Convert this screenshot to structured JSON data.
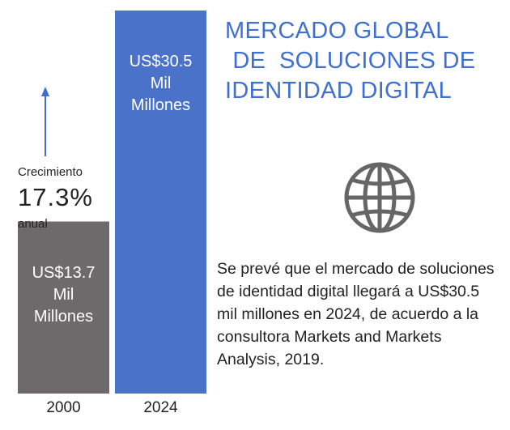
{
  "colors": {
    "bar_2000": "#6e6a6b",
    "bar_2024": "#4a72c8",
    "title": "#3f6fd1",
    "arrow": "#3f6fd1",
    "globe": "#666666"
  },
  "title": {
    "line1": "MERCADO GLOBAL",
    "line2": " DE  SOLUCIONES DE",
    "line3": "IDENTIDAD DIGITAL"
  },
  "growth": {
    "label": "Crecimiento",
    "value": "17.3%",
    "unit": "anual"
  },
  "description": "Se prevé que el mercado de soluciones de identidad digital llegará a US$30.5 mil millones en 2024, de acuerdo a la consultora Markets and Markets Analysis, 2019.",
  "icon": "globe-icon",
  "chart_data": {
    "type": "bar",
    "categories": [
      "2000",
      "2024"
    ],
    "values": [
      13.7,
      30.5
    ],
    "value_labels": [
      "US$13.7\nMil\nMillones",
      "US$30.5\nMil\nMillones"
    ],
    "title": "MERCADO GLOBAL DE SOLUCIONES DE IDENTIDAD DIGITAL",
    "xlabel": "",
    "ylabel": "",
    "ylim": [
      0,
      30.5
    ],
    "grid": false
  }
}
